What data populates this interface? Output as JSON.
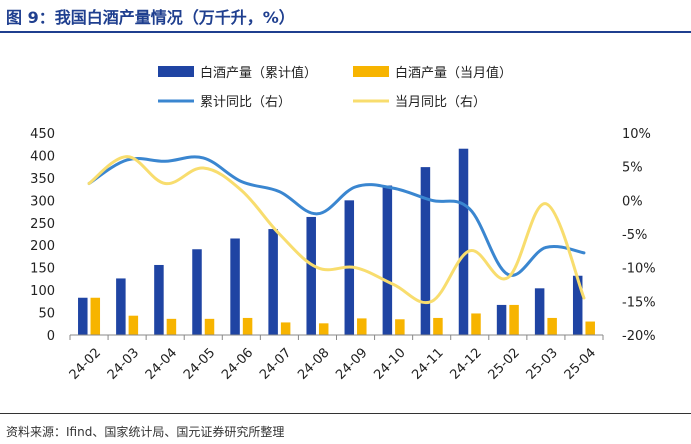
{
  "title": "图 9：我国白酒产量情况（万千升，%）",
  "source": "资料来源：Ifind、国家统计局、国元证券研究所整理",
  "colors": {
    "cumulative_bar": "#1f44a3",
    "monthly_bar": "#f7b400",
    "cumulative_line": "#3a86d0",
    "monthly_line": "#f8dd6e",
    "title": "#1f3f8f"
  },
  "chart_data": {
    "type": "bar",
    "categories": [
      "24-02",
      "24-03",
      "24-04",
      "24-05",
      "24-06",
      "24-07",
      "24-08",
      "24-09",
      "24-10",
      "24-11",
      "24-12",
      "25-02",
      "25-03",
      "25-04"
    ],
    "series": [
      {
        "name": "白酒产量（累计值）",
        "type": "bar",
        "axis": "left",
        "values": [
          83,
          126,
          156,
          191,
          215,
          236,
          263,
          300,
          333,
          374,
          415,
          67,
          104,
          132
        ]
      },
      {
        "name": "白酒产量（当月值）",
        "type": "bar",
        "axis": "left",
        "values": [
          83,
          43,
          36,
          36,
          38,
          28,
          26,
          37,
          35,
          38,
          48,
          67,
          38,
          30
        ]
      },
      {
        "name": "累计同比（右）",
        "type": "line",
        "axis": "right",
        "values": [
          2.5,
          6.0,
          5.8,
          6.3,
          2.8,
          1.3,
          -2.0,
          2.0,
          1.8,
          0.0,
          -1.3,
          -11.0,
          -7.0,
          -7.8
        ]
      },
      {
        "name": "当月同比（右）",
        "type": "line",
        "axis": "right",
        "values": [
          2.5,
          6.5,
          2.5,
          4.8,
          1.5,
          -5.0,
          -10.0,
          -10.0,
          -12.5,
          -15.0,
          -7.5,
          -11.5,
          -0.5,
          -14.5
        ]
      }
    ],
    "left_axis": {
      "min": 0,
      "max": 450,
      "step": 50,
      "ticks": [
        "0",
        "50",
        "100",
        "150",
        "200",
        "250",
        "300",
        "350",
        "400",
        "450"
      ]
    },
    "right_axis": {
      "min": -20,
      "max": 10,
      "step": 5,
      "ticks": [
        "-20%",
        "-15%",
        "-10%",
        "-5%",
        "0%",
        "5%",
        "10%"
      ]
    },
    "legend_position": "top",
    "grid": false
  }
}
